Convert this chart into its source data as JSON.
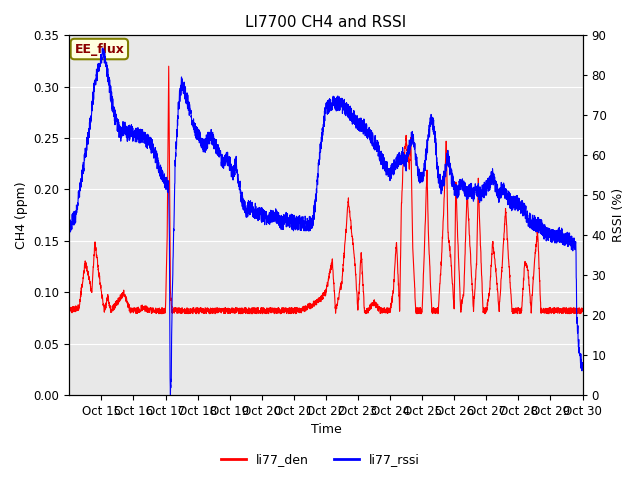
{
  "title": "LI7700 CH4 and RSSI",
  "xlabel": "Time",
  "ylabel_left": "CH4 (ppm)",
  "ylabel_right": "RSSI (%)",
  "ylim_left": [
    0.0,
    0.35
  ],
  "ylim_right": [
    0,
    90
  ],
  "yticks_left": [
    0.0,
    0.05,
    0.1,
    0.15,
    0.2,
    0.25,
    0.3,
    0.35
  ],
  "yticks_right": [
    0,
    10,
    20,
    30,
    40,
    50,
    60,
    70,
    80,
    90
  ],
  "xtick_positions": [
    15,
    16,
    17,
    18,
    19,
    20,
    21,
    22,
    23,
    24,
    25,
    26,
    27,
    28,
    29,
    30
  ],
  "xtick_labels": [
    "Oct 15",
    "Oct 16",
    "Oct 17",
    "Oct 18",
    "Oct 19",
    "Oct 20",
    "Oct 21",
    "Oct 22",
    "Oct 23",
    "Oct 24",
    "Oct 25",
    "Oct 26",
    "Oct 27",
    "Oct 28",
    "Oct 29",
    "Oct 30"
  ],
  "color_den": "#ff0000",
  "color_rssi": "#0000ff",
  "legend_labels": [
    "li77_den",
    "li77_rssi"
  ],
  "annotation_text": "EE_flux",
  "bg_color": "#e8e8e8",
  "linewidth": 0.8,
  "title_fontsize": 11,
  "label_fontsize": 9,
  "tick_fontsize": 8.5
}
